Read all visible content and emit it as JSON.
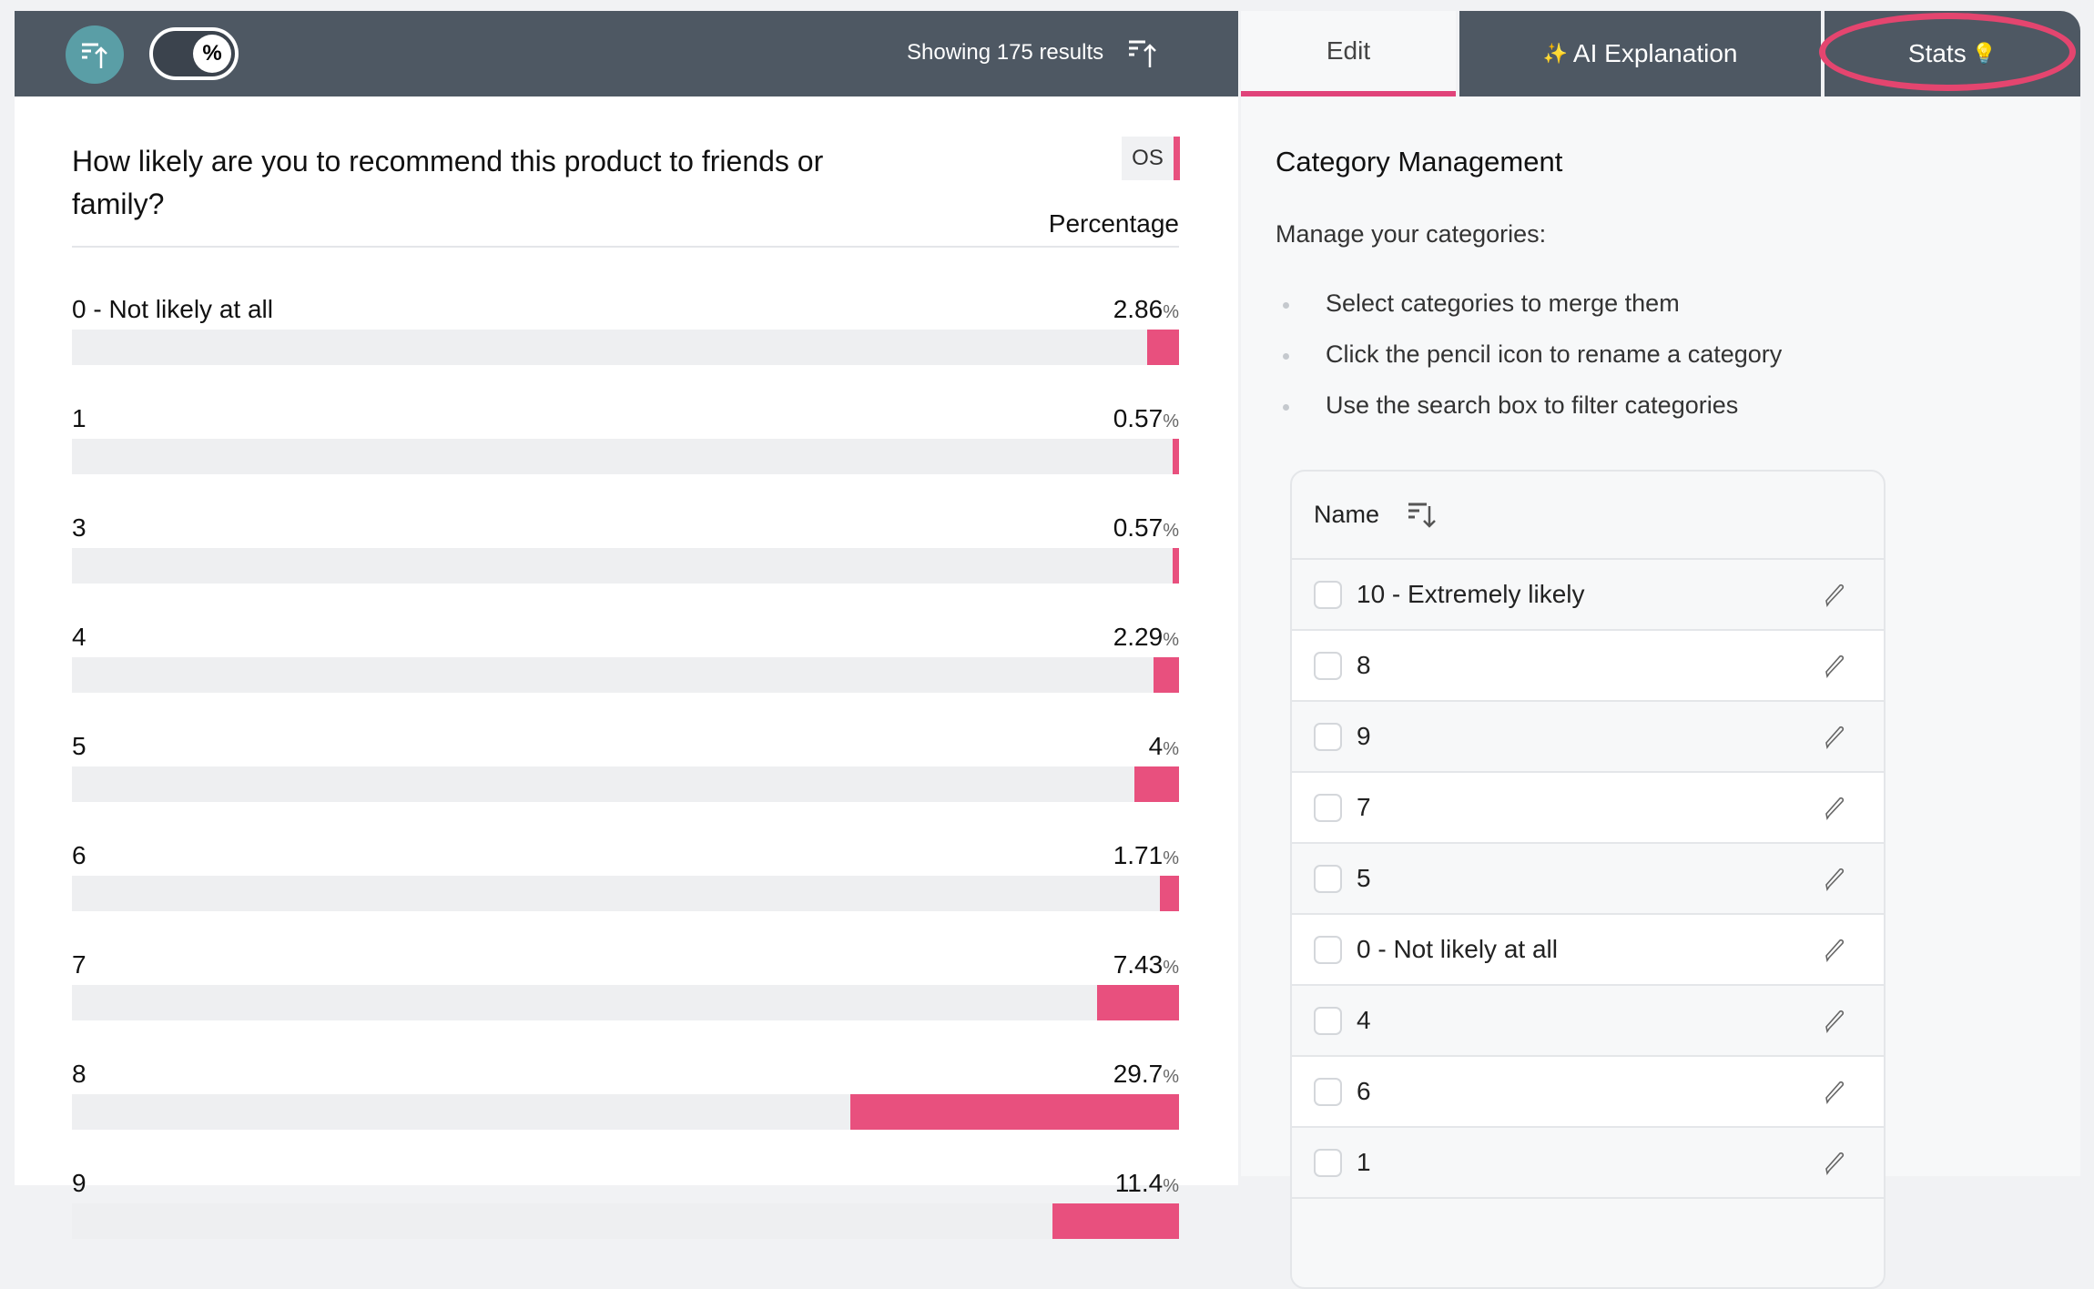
{
  "toolbar": {
    "sort_icon": "sort-ascending-icon",
    "percent_toggle": "%",
    "showing": "Showing 175 results"
  },
  "tabs": {
    "edit": "Edit",
    "ai": "AI Explanation",
    "ai_icon": "✨",
    "stats": "Stats",
    "stats_icon": "💡"
  },
  "question": {
    "title": "How likely are you to recommend this product to friends or family?",
    "badge": "OS",
    "column_header": "Percentage"
  },
  "colors": {
    "accent": "#e8507e",
    "header": "#4e5863",
    "sort_button": "#5a9ea6"
  },
  "results": [
    {
      "label": "0 - Not likely at all",
      "value": "2.86",
      "pct": 2.86
    },
    {
      "label": "1",
      "value": "0.57",
      "pct": 0.57
    },
    {
      "label": "3",
      "value": "0.57",
      "pct": 0.57
    },
    {
      "label": "4",
      "value": "2.29",
      "pct": 2.29
    },
    {
      "label": "5",
      "value": "4",
      "pct": 4
    },
    {
      "label": "6",
      "value": "1.71",
      "pct": 1.71
    },
    {
      "label": "7",
      "value": "7.43",
      "pct": 7.43
    },
    {
      "label": "8",
      "value": "29.7",
      "pct": 29.7
    },
    {
      "label": "9",
      "value": "11.4",
      "pct": 11.4
    }
  ],
  "percent_unit": "%",
  "category_management": {
    "title": "Category Management",
    "subtitle": "Manage your categories:",
    "tips": [
      "Select categories to merge them",
      "Click the pencil icon to rename a category",
      "Use the search box to filter categories"
    ],
    "column": "Name",
    "categories": [
      "10 - Extremely likely",
      "8",
      "9",
      "7",
      "5",
      "0 - Not likely at all",
      "4",
      "6",
      "1"
    ]
  }
}
